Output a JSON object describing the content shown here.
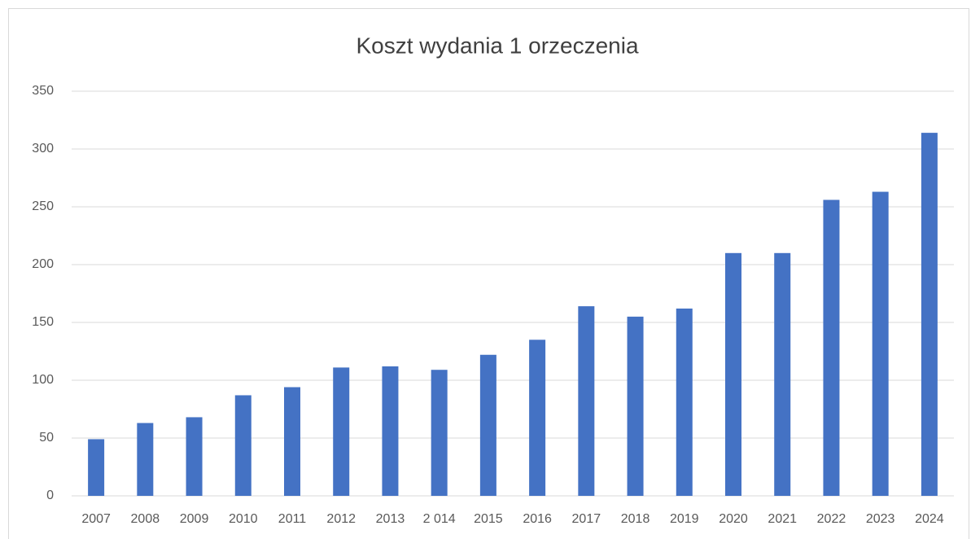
{
  "chart_data": {
    "type": "bar",
    "title": "Koszt wydania 1 orzeczenia",
    "categories": [
      "2007",
      "2008",
      "2009",
      "2010",
      "2011",
      "2012",
      "2013",
      "2 014",
      "2015",
      "2016",
      "2017",
      "2018",
      "2019",
      "2020",
      "2021",
      "2022",
      "2023",
      "2024"
    ],
    "values": [
      49,
      63,
      68,
      87,
      94,
      111,
      112,
      109,
      122,
      135,
      164,
      155,
      162,
      210,
      210,
      256,
      263,
      314
    ],
    "color": "#4472c4",
    "ylim": [
      0,
      350
    ],
    "yticks": [
      0,
      50,
      100,
      150,
      200,
      250,
      300,
      350
    ],
    "grid": true
  }
}
